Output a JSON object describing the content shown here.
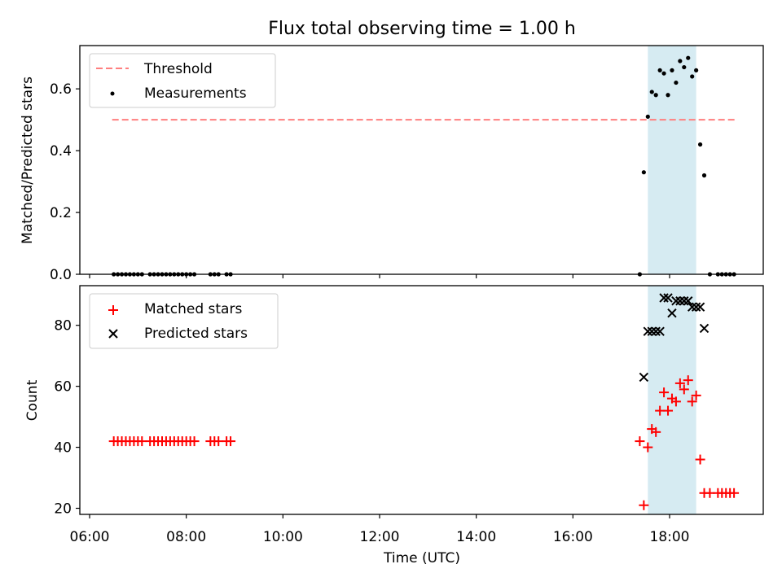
{
  "title": "Flux total observing time = 1.00 h",
  "colors": {
    "threshold": "#ff7f7f",
    "measurement": "#000000",
    "matched": "#ff0000",
    "predicted": "#000000",
    "span": "#add8e6"
  },
  "chart_data": [
    {
      "type": "scatter",
      "ylabel": "Matched/Predicted stars",
      "xlim": [
        "06:00",
        "20:00"
      ],
      "ylim": [
        0,
        0.74
      ],
      "yticks": [
        "0.0",
        "0.2",
        "0.4",
        "0.6"
      ],
      "legend": {
        "placement": "upper-left",
        "entries": [
          "Threshold",
          "Measurements"
        ]
      },
      "threshold": {
        "name": "Threshold",
        "value": 0.5,
        "x_start": "06:28",
        "x_end": "19:24"
      },
      "highlight_span": [
        "17:33",
        "18:33"
      ],
      "series": [
        {
          "name": "Measurements",
          "points": [
            [
              "06:30",
              0
            ],
            [
              "06:35",
              0
            ],
            [
              "06:40",
              0
            ],
            [
              "06:45",
              0
            ],
            [
              "06:50",
              0
            ],
            [
              "06:55",
              0
            ],
            [
              "07:00",
              0
            ],
            [
              "07:05",
              0
            ],
            [
              "07:15",
              0
            ],
            [
              "07:20",
              0
            ],
            [
              "07:25",
              0
            ],
            [
              "07:30",
              0
            ],
            [
              "07:35",
              0
            ],
            [
              "07:40",
              0
            ],
            [
              "07:45",
              0
            ],
            [
              "07:50",
              0
            ],
            [
              "07:55",
              0
            ],
            [
              "08:00",
              0
            ],
            [
              "08:05",
              0
            ],
            [
              "08:10",
              0
            ],
            [
              "08:30",
              0
            ],
            [
              "08:35",
              0
            ],
            [
              "08:40",
              0
            ],
            [
              "08:50",
              0
            ],
            [
              "08:55",
              0
            ],
            [
              "17:23",
              0
            ],
            [
              "17:28",
              0.33
            ],
            [
              "17:33",
              0.51
            ],
            [
              "17:38",
              0.59
            ],
            [
              "17:43",
              0.58
            ],
            [
              "17:48",
              0.66
            ],
            [
              "17:53",
              0.65
            ],
            [
              "17:58",
              0.58
            ],
            [
              "18:03",
              0.66
            ],
            [
              "18:08",
              0.62
            ],
            [
              "18:13",
              0.69
            ],
            [
              "18:18",
              0.67
            ],
            [
              "18:23",
              0.7
            ],
            [
              "18:28",
              0.64
            ],
            [
              "18:33",
              0.66
            ],
            [
              "18:38",
              0.42
            ],
            [
              "18:43",
              0.32
            ],
            [
              "18:50",
              0
            ],
            [
              "19:00",
              0
            ],
            [
              "19:05",
              0
            ],
            [
              "19:10",
              0
            ],
            [
              "19:15",
              0
            ],
            [
              "19:20",
              0
            ]
          ]
        }
      ]
    },
    {
      "type": "scatter",
      "xlabel": "Time (UTC)",
      "ylabel": "Count",
      "xlim": [
        "06:00",
        "20:00"
      ],
      "ylim": [
        18,
        93
      ],
      "yticks": [
        "20",
        "40",
        "60",
        "80"
      ],
      "xticks": [
        "06:00",
        "08:00",
        "10:00",
        "12:00",
        "14:00",
        "16:00",
        "18:00"
      ],
      "legend": {
        "placement": "upper-left",
        "entries": [
          "Matched stars",
          "Predicted stars"
        ]
      },
      "highlight_span": [
        "17:33",
        "18:33"
      ],
      "series": [
        {
          "name": "Matched stars",
          "marker": "plus",
          "points": [
            [
              "06:30",
              42
            ],
            [
              "06:35",
              42
            ],
            [
              "06:40",
              42
            ],
            [
              "06:45",
              42
            ],
            [
              "06:50",
              42
            ],
            [
              "06:55",
              42
            ],
            [
              "07:00",
              42
            ],
            [
              "07:05",
              42
            ],
            [
              "07:15",
              42
            ],
            [
              "07:20",
              42
            ],
            [
              "07:25",
              42
            ],
            [
              "07:30",
              42
            ],
            [
              "07:35",
              42
            ],
            [
              "07:40",
              42
            ],
            [
              "07:45",
              42
            ],
            [
              "07:50",
              42
            ],
            [
              "07:55",
              42
            ],
            [
              "08:00",
              42
            ],
            [
              "08:05",
              42
            ],
            [
              "08:10",
              42
            ],
            [
              "08:30",
              42
            ],
            [
              "08:35",
              42
            ],
            [
              "08:40",
              42
            ],
            [
              "08:50",
              42
            ],
            [
              "08:55",
              42
            ],
            [
              "17:23",
              42
            ],
            [
              "17:28",
              21
            ],
            [
              "17:33",
              40
            ],
            [
              "17:38",
              46
            ],
            [
              "17:43",
              45
            ],
            [
              "17:48",
              52
            ],
            [
              "17:53",
              58
            ],
            [
              "17:58",
              52
            ],
            [
              "18:03",
              56
            ],
            [
              "18:08",
              55
            ],
            [
              "18:13",
              61
            ],
            [
              "18:18",
              59
            ],
            [
              "18:23",
              62
            ],
            [
              "18:28",
              55
            ],
            [
              "18:33",
              57
            ],
            [
              "18:38",
              36
            ],
            [
              "18:43",
              25
            ],
            [
              "18:50",
              25
            ],
            [
              "19:00",
              25
            ],
            [
              "19:05",
              25
            ],
            [
              "19:10",
              25
            ],
            [
              "19:15",
              25
            ],
            [
              "19:20",
              25
            ]
          ]
        },
        {
          "name": "Predicted stars",
          "marker": "x",
          "points": [
            [
              "17:28",
              63
            ],
            [
              "17:33",
              78
            ],
            [
              "17:38",
              78
            ],
            [
              "17:43",
              78
            ],
            [
              "17:48",
              78
            ],
            [
              "17:53",
              89
            ],
            [
              "17:58",
              89
            ],
            [
              "18:03",
              84
            ],
            [
              "18:08",
              88
            ],
            [
              "18:13",
              88
            ],
            [
              "18:18",
              88
            ],
            [
              "18:23",
              88
            ],
            [
              "18:28",
              86
            ],
            [
              "18:33",
              86
            ],
            [
              "18:38",
              86
            ],
            [
              "18:43",
              79
            ]
          ]
        }
      ]
    }
  ]
}
